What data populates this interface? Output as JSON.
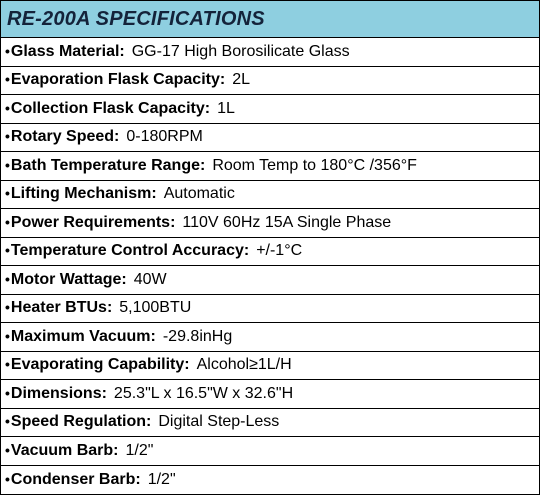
{
  "title": "RE-200A SPECIFICATIONS",
  "bullet_char": "•",
  "specs": [
    {
      "label": "Glass Material:",
      "value": "GG-17 High Borosilicate Glass"
    },
    {
      "label": "Evaporation Flask Capacity:",
      "value": "2L"
    },
    {
      "label": "Collection Flask Capacity:",
      "value": "1L"
    },
    {
      "label": "Rotary Speed:",
      "value": "0-180RPM"
    },
    {
      "label": "Bath Temperature Range:",
      "value": "Room Temp to 180°C /356°F"
    },
    {
      "label": "Lifting Mechanism:",
      "value": "Automatic"
    },
    {
      "label": "Power Requirements:",
      "value": "110V 60Hz 15A Single Phase"
    },
    {
      "label": "Temperature Control Accuracy:",
      "value": "+/-1°C"
    },
    {
      "label": "Motor Wattage:",
      "value": "40W"
    },
    {
      "label": "Heater BTUs:",
      "value": "5,100BTU"
    },
    {
      "label": "Maximum Vacuum:",
      "value": "-29.8inHg"
    },
    {
      "label": "Evaporating Capability:",
      "value": "Alcohol≥1L/H"
    },
    {
      "label": "Dimensions:",
      "value": "25.3\"L x 16.5\"W x 32.6\"H"
    },
    {
      "label": "Speed Regulation:",
      "value": "Digital Step-Less"
    },
    {
      "label": "Vacuum Barb:",
      "value": "1/2\""
    },
    {
      "label": "Condenser Barb:",
      "value": "1/2\""
    }
  ],
  "colors": {
    "header_background": "#8ecfe0",
    "title_text": "#14233a",
    "border": "#000000"
  }
}
